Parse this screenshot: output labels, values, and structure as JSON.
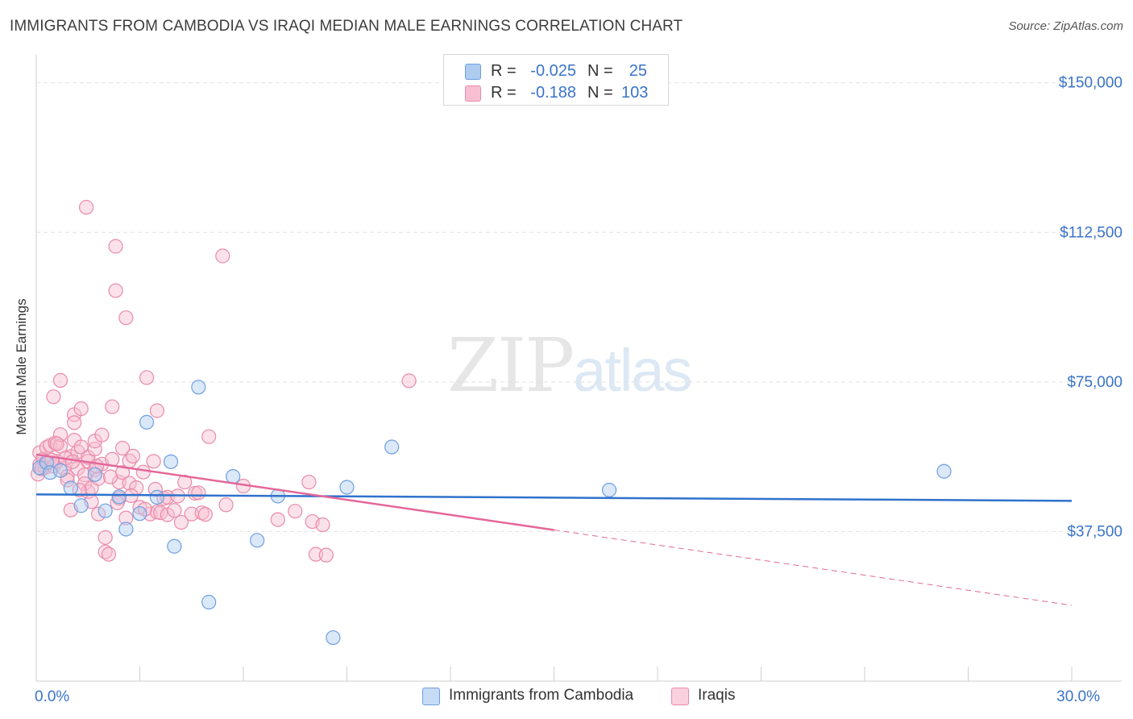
{
  "title": "IMMIGRANTS FROM CAMBODIA VS IRAQI MEDIAN MALE EARNINGS CORRELATION CHART",
  "source": "Source: ZipAtlas.com",
  "watermark": {
    "zip": "ZIP",
    "atlas": "atlas"
  },
  "legend": {
    "rows": [
      {
        "r_label": "R =",
        "r_value": "-0.025",
        "n_label": "N =",
        "n_value": "25",
        "color": "#aecbf0",
        "border": "#6f9fe0"
      },
      {
        "r_label": "R =",
        "r_value": "-0.188",
        "n_label": "N =",
        "n_value": "103",
        "color": "#f7bfd1",
        "border": "#e98aaa"
      }
    ]
  },
  "bottom_legend": [
    {
      "label": "Immigrants from Cambodia",
      "color": "#c6dbf6",
      "border": "#6f9fe0"
    },
    {
      "label": "Iraqis",
      "color": "#fbd0de",
      "border": "#e98aaa"
    }
  ],
  "chart_data": {
    "type": "scatter",
    "title": "IMMIGRANTS FROM CAMBODIA VS IRAQI MEDIAN MALE EARNINGS CORRELATION CHART",
    "xlabel": "",
    "ylabel": "Median Male Earnings",
    "xlim": [
      0,
      30
    ],
    "ylim": [
      0,
      155000
    ],
    "x_tick_labels": [
      {
        "value": 0,
        "label": "0.0%"
      },
      {
        "value": 30,
        "label": "30.0%"
      }
    ],
    "y_ticks": [
      {
        "value": 37500,
        "label": "$37,500"
      },
      {
        "value": 75000,
        "label": "$75,000"
      },
      {
        "value": 112500,
        "label": "$112,500"
      },
      {
        "value": 150000,
        "label": "$150,000"
      }
    ],
    "series": [
      {
        "name": "Immigrants from Cambodia",
        "color": "#6f9fe0",
        "fill": "rgba(174,203,240,0.45)",
        "line_color": "#2f72cc",
        "trend": {
          "x0": 0,
          "y0": 46800,
          "x1": 30,
          "y1": 45200,
          "dashed_from": null
        },
        "points": [
          [
            0.1,
            53500
          ],
          [
            0.3,
            54800
          ],
          [
            0.4,
            52300
          ],
          [
            0.7,
            52800
          ],
          [
            1.0,
            48400
          ],
          [
            1.3,
            44000
          ],
          [
            1.7,
            51800
          ],
          [
            2.0,
            42700
          ],
          [
            2.4,
            46200
          ],
          [
            2.6,
            38100
          ],
          [
            3.0,
            42000
          ],
          [
            3.2,
            64900
          ],
          [
            3.5,
            46100
          ],
          [
            3.9,
            55000
          ],
          [
            4.0,
            33800
          ],
          [
            4.7,
            73700
          ],
          [
            5.0,
            19800
          ],
          [
            5.7,
            51300
          ],
          [
            6.4,
            35300
          ],
          [
            7.0,
            46400
          ],
          [
            8.6,
            10900
          ],
          [
            9.0,
            48600
          ],
          [
            10.3,
            58700
          ],
          [
            16.6,
            47900
          ],
          [
            26.3,
            52600
          ]
        ]
      },
      {
        "name": "Iraqis",
        "color": "#e98aaa",
        "fill": "rgba(247,191,209,0.45)",
        "line_color": "#e4679a",
        "trend": {
          "x0": 0,
          "y0": 56800,
          "x1": 30,
          "y1": 19000,
          "dashed_from": 15
        },
        "points": [
          [
            0.05,
            51900
          ],
          [
            0.1,
            54300
          ],
          [
            0.1,
            57300
          ],
          [
            0.2,
            55600
          ],
          [
            0.25,
            53500
          ],
          [
            0.3,
            58600
          ],
          [
            0.35,
            54700
          ],
          [
            0.4,
            59100
          ],
          [
            0.5,
            53900
          ],
          [
            0.5,
            71300
          ],
          [
            0.55,
            59700
          ],
          [
            0.6,
            55100
          ],
          [
            0.7,
            75400
          ],
          [
            0.7,
            58900
          ],
          [
            0.7,
            61800
          ],
          [
            0.8,
            53300
          ],
          [
            0.9,
            51300
          ],
          [
            0.9,
            50400
          ],
          [
            1.0,
            42900
          ],
          [
            1.0,
            56300
          ],
          [
            1.1,
            60400
          ],
          [
            1.1,
            66800
          ],
          [
            1.1,
            64800
          ],
          [
            1.2,
            57500
          ],
          [
            1.2,
            53300
          ],
          [
            1.3,
            58700
          ],
          [
            1.3,
            68300
          ],
          [
            1.4,
            51700
          ],
          [
            1.4,
            49500
          ],
          [
            1.45,
            118800
          ],
          [
            1.5,
            55100
          ],
          [
            1.5,
            56100
          ],
          [
            1.5,
            47500
          ],
          [
            1.6,
            45000
          ],
          [
            1.6,
            48400
          ],
          [
            1.7,
            58200
          ],
          [
            1.7,
            53000
          ],
          [
            1.7,
            60200
          ],
          [
            1.8,
            41900
          ],
          [
            1.8,
            50800
          ],
          [
            1.9,
            61700
          ],
          [
            1.9,
            54400
          ],
          [
            2.0,
            36000
          ],
          [
            2.0,
            32400
          ],
          [
            2.1,
            31800
          ],
          [
            2.2,
            55600
          ],
          [
            2.2,
            68800
          ],
          [
            2.3,
            97900
          ],
          [
            2.3,
            109000
          ],
          [
            2.4,
            49900
          ],
          [
            2.4,
            45800
          ],
          [
            2.5,
            52300
          ],
          [
            2.5,
            58400
          ],
          [
            2.6,
            91100
          ],
          [
            2.6,
            40900
          ],
          [
            2.7,
            55200
          ],
          [
            2.7,
            49600
          ],
          [
            2.8,
            56400
          ],
          [
            2.9,
            48500
          ],
          [
            3.0,
            43600
          ],
          [
            3.1,
            52400
          ],
          [
            3.2,
            76100
          ],
          [
            3.3,
            41900
          ],
          [
            3.4,
            55100
          ],
          [
            3.5,
            67800
          ],
          [
            3.5,
            42400
          ],
          [
            3.6,
            42200
          ],
          [
            3.7,
            45800
          ],
          [
            3.8,
            46100
          ],
          [
            3.8,
            41700
          ],
          [
            4.0,
            42800
          ],
          [
            4.2,
            39800
          ],
          [
            4.3,
            49900
          ],
          [
            4.5,
            41900
          ],
          [
            4.6,
            47100
          ],
          [
            4.7,
            47200
          ],
          [
            4.8,
            42200
          ],
          [
            4.9,
            41800
          ],
          [
            5.0,
            61300
          ],
          [
            5.4,
            106600
          ],
          [
            5.5,
            44200
          ],
          [
            6.0,
            48900
          ],
          [
            7.0,
            40500
          ],
          [
            7.5,
            42600
          ],
          [
            7.9,
            49900
          ],
          [
            8.0,
            40000
          ],
          [
            8.1,
            31800
          ],
          [
            8.3,
            39200
          ],
          [
            8.4,
            31600
          ],
          [
            10.8,
            75300
          ],
          [
            0.45,
            55400
          ],
          [
            0.85,
            55900
          ],
          [
            1.25,
            47900
          ],
          [
            1.75,
            53900
          ],
          [
            2.15,
            51200
          ],
          [
            2.35,
            44700
          ],
          [
            2.75,
            46500
          ],
          [
            3.15,
            43100
          ],
          [
            3.45,
            48100
          ],
          [
            4.1,
            46400
          ],
          [
            0.15,
            53200
          ],
          [
            0.6,
            59500
          ],
          [
            1.05,
            55000
          ]
        ]
      }
    ]
  }
}
